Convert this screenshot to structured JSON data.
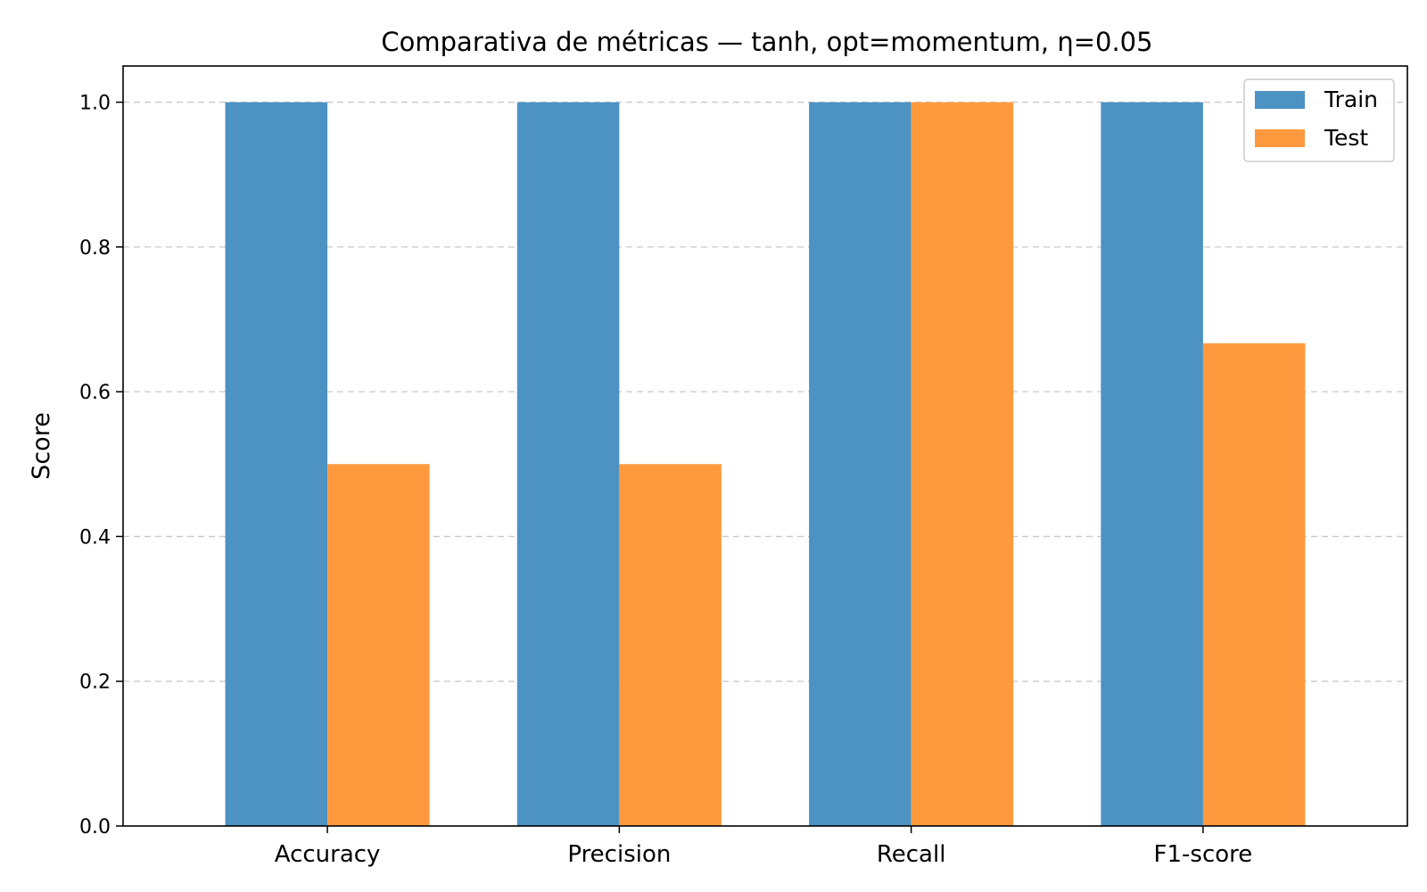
{
  "chart_data": {
    "type": "bar",
    "title": "Comparativa de métricas — tanh, opt=momentum, η=0.05",
    "xlabel": "",
    "ylabel": "Score",
    "categories": [
      "Accuracy",
      "Precision",
      "Recall",
      "F1-score"
    ],
    "series": [
      {
        "name": "Train",
        "values": [
          1.0,
          1.0,
          1.0,
          1.0
        ],
        "color": "#4c92c3"
      },
      {
        "name": "Test",
        "values": [
          0.5,
          0.5,
          1.0,
          0.667
        ],
        "color": "#ff993e"
      }
    ],
    "ylim": [
      0,
      1.05
    ],
    "yticks": [
      "0.0",
      "0.2",
      "0.4",
      "0.6",
      "0.8",
      "1.0"
    ],
    "grid": "y-dashed",
    "legend_position": "top-right"
  }
}
